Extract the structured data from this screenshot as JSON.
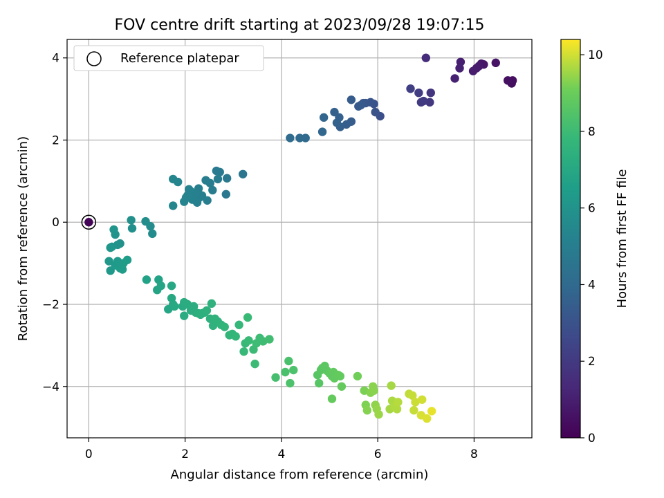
{
  "chart_data": {
    "type": "scatter",
    "title": "FOV centre drift starting at 2023/09/28 19:07:15",
    "xlabel": "Angular distance from reference (arcmin)",
    "ylabel": "Rotation from reference (arcmin)",
    "xlim": [
      -0.45,
      9.2
    ],
    "ylim": [
      -5.25,
      4.45
    ],
    "x_ticks": [
      0,
      2,
      4,
      6,
      8
    ],
    "y_ticks": [
      -4,
      -2,
      0,
      2,
      4
    ],
    "x_tick_labels": [
      "0",
      "2",
      "4",
      "6",
      "8"
    ],
    "y_tick_labels": [
      "−4",
      "−2",
      "0",
      "2",
      "4"
    ],
    "grid": true,
    "legend": {
      "position": "top-left",
      "entries": [
        "Reference platepar"
      ]
    },
    "reference_point": {
      "x": 0,
      "y": 0
    },
    "colorbar": {
      "label": "Hours from first FF file",
      "colormap": "viridis",
      "range": [
        0,
        10.4
      ],
      "ticks": [
        0,
        2,
        4,
        6,
        8,
        10
      ],
      "tick_labels": [
        "0",
        "2",
        "4",
        "6",
        "8",
        "10"
      ]
    },
    "series": [
      {
        "points": [
          [
            0.0,
            0.0,
            0.1
          ],
          [
            8.8,
            3.45,
            0.4
          ],
          [
            8.78,
            3.38,
            0.45
          ],
          [
            8.7,
            3.45,
            0.5
          ],
          [
            8.45,
            3.88,
            0.6
          ],
          [
            8.2,
            3.84,
            0.7
          ],
          [
            8.15,
            3.86,
            0.75
          ],
          [
            8.1,
            3.8,
            0.8
          ],
          [
            8.05,
            3.75,
            0.85
          ],
          [
            7.98,
            3.68,
            0.9
          ],
          [
            7.72,
            3.9,
            1.0
          ],
          [
            7.7,
            3.75,
            1.05
          ],
          [
            7.6,
            3.5,
            1.1
          ],
          [
            7.0,
            4.0,
            1.5
          ],
          [
            7.1,
            3.15,
            1.8
          ],
          [
            7.08,
            2.92,
            1.9
          ],
          [
            6.95,
            2.95,
            2.0
          ],
          [
            6.9,
            2.92,
            2.05
          ],
          [
            6.85,
            3.15,
            2.1
          ],
          [
            6.68,
            3.25,
            2.2
          ],
          [
            6.05,
            2.58,
            2.9
          ],
          [
            5.95,
            2.68,
            3.0
          ],
          [
            5.92,
            2.88,
            3.05
          ],
          [
            5.85,
            2.92,
            3.1
          ],
          [
            5.75,
            2.9,
            3.15
          ],
          [
            5.7,
            2.9,
            3.2
          ],
          [
            5.65,
            2.85,
            3.25
          ],
          [
            5.6,
            2.82,
            3.3
          ],
          [
            5.45,
            2.98,
            3.4
          ],
          [
            5.45,
            2.45,
            3.45
          ],
          [
            5.35,
            2.38,
            3.5
          ],
          [
            5.22,
            2.32,
            3.55
          ],
          [
            5.2,
            2.55,
            3.6
          ],
          [
            5.1,
            2.68,
            3.65
          ],
          [
            5.15,
            2.42,
            3.7
          ],
          [
            4.88,
            2.55,
            3.8
          ],
          [
            4.85,
            2.2,
            3.85
          ],
          [
            4.5,
            2.05,
            4.0
          ],
          [
            4.38,
            2.05,
            4.05
          ],
          [
            4.18,
            2.05,
            4.1
          ],
          [
            3.2,
            1.17,
            4.6
          ],
          [
            2.85,
            0.68,
            4.7
          ],
          [
            2.87,
            1.07,
            4.75
          ],
          [
            2.72,
            1.22,
            4.8
          ],
          [
            2.65,
            1.25,
            4.8
          ],
          [
            2.68,
            1.05,
            4.85
          ],
          [
            2.57,
            0.78,
            4.9
          ],
          [
            2.52,
            0.95,
            4.9
          ],
          [
            2.43,
            1.02,
            4.95
          ],
          [
            2.46,
            0.53,
            5.0
          ],
          [
            2.35,
            0.65,
            5.0
          ],
          [
            2.3,
            0.6,
            5.05
          ],
          [
            2.28,
            0.82,
            5.05
          ],
          [
            2.25,
            0.48,
            5.1
          ],
          [
            2.2,
            0.7,
            5.1
          ],
          [
            2.15,
            0.55,
            5.15
          ],
          [
            2.12,
            0.75,
            5.15
          ],
          [
            2.08,
            0.8,
            5.2
          ],
          [
            2.05,
            0.65,
            5.2
          ],
          [
            2.02,
            0.6,
            5.25
          ],
          [
            1.98,
            0.5,
            5.3
          ],
          [
            1.85,
            0.98,
            5.3
          ],
          [
            1.75,
            1.05,
            5.35
          ],
          [
            1.75,
            0.4,
            5.4
          ],
          [
            1.32,
            -0.28,
            5.6
          ],
          [
            1.28,
            -0.1,
            5.65
          ],
          [
            1.18,
            0.02,
            5.7
          ],
          [
            0.9,
            -0.15,
            5.8
          ],
          [
            0.88,
            0.05,
            5.85
          ],
          [
            0.65,
            -0.52,
            5.9
          ],
          [
            0.6,
            -0.55,
            5.95
          ],
          [
            0.55,
            -0.3,
            6.0
          ],
          [
            0.52,
            -0.18,
            6.05
          ],
          [
            0.48,
            -0.6,
            6.1
          ],
          [
            0.45,
            -0.62,
            6.15
          ],
          [
            0.42,
            -0.95,
            6.2
          ],
          [
            0.45,
            -1.18,
            6.25
          ],
          [
            0.55,
            -1.05,
            6.3
          ],
          [
            0.6,
            -0.95,
            6.3
          ],
          [
            0.65,
            -1.12,
            6.35
          ],
          [
            0.7,
            -1.15,
            6.4
          ],
          [
            0.72,
            -1.0,
            6.4
          ],
          [
            0.8,
            -0.92,
            6.45
          ],
          [
            1.2,
            -1.4,
            6.7
          ],
          [
            1.45,
            -1.4,
            6.75
          ],
          [
            1.42,
            -1.65,
            6.8
          ],
          [
            1.5,
            -1.55,
            6.85
          ],
          [
            1.65,
            -2.12,
            6.9
          ],
          [
            1.72,
            -1.55,
            6.95
          ],
          [
            1.72,
            -1.85,
            7.0
          ],
          [
            1.75,
            -2.0,
            7.0
          ],
          [
            1.78,
            -2.05,
            7.05
          ],
          [
            1.95,
            -2.05,
            7.1
          ],
          [
            1.98,
            -1.95,
            7.15
          ],
          [
            1.98,
            -2.28,
            7.15
          ],
          [
            2.05,
            -2.0,
            7.2
          ],
          [
            2.12,
            -2.15,
            7.25
          ],
          [
            2.18,
            -2.05,
            7.25
          ],
          [
            2.22,
            -2.2,
            7.3
          ],
          [
            2.28,
            -2.22,
            7.35
          ],
          [
            2.32,
            -2.25,
            7.35
          ],
          [
            2.35,
            -2.22,
            7.4
          ],
          [
            2.4,
            -2.2,
            7.4
          ],
          [
            2.45,
            -2.15,
            7.45
          ],
          [
            2.52,
            -2.35,
            7.45
          ],
          [
            2.55,
            -1.98,
            7.5
          ],
          [
            2.58,
            -2.52,
            7.5
          ],
          [
            2.62,
            -2.35,
            7.55
          ],
          [
            2.68,
            -2.42,
            7.55
          ],
          [
            2.75,
            -2.5,
            7.6
          ],
          [
            2.82,
            -2.55,
            7.65
          ],
          [
            2.92,
            -2.75,
            7.7
          ],
          [
            2.98,
            -2.72,
            7.7
          ],
          [
            3.05,
            -2.78,
            7.75
          ],
          [
            3.12,
            -2.5,
            7.8
          ],
          [
            3.22,
            -3.15,
            7.85
          ],
          [
            3.25,
            -2.95,
            7.85
          ],
          [
            3.3,
            -2.32,
            7.9
          ],
          [
            3.32,
            -2.88,
            7.9
          ],
          [
            3.42,
            -3.1,
            7.95
          ],
          [
            3.45,
            -3.45,
            7.95
          ],
          [
            3.48,
            -2.95,
            8.0
          ],
          [
            3.55,
            -2.82,
            8.0
          ],
          [
            3.62,
            -2.9,
            8.05
          ],
          [
            3.75,
            -2.85,
            8.1
          ],
          [
            3.88,
            -3.78,
            8.2
          ],
          [
            4.08,
            -3.65,
            8.3
          ],
          [
            4.15,
            -3.38,
            8.3
          ],
          [
            4.18,
            -3.92,
            8.35
          ],
          [
            4.25,
            -3.6,
            8.35
          ],
          [
            4.75,
            -3.72,
            8.6
          ],
          [
            4.78,
            -3.92,
            8.6
          ],
          [
            4.82,
            -3.6,
            8.65
          ],
          [
            4.85,
            -3.55,
            8.65
          ],
          [
            4.9,
            -3.5,
            8.7
          ],
          [
            4.95,
            -3.62,
            8.7
          ],
          [
            5.0,
            -3.68,
            8.75
          ],
          [
            5.05,
            -3.75,
            8.75
          ],
          [
            5.08,
            -3.65,
            8.8
          ],
          [
            5.1,
            -3.8,
            8.8
          ],
          [
            5.18,
            -3.72,
            8.85
          ],
          [
            5.22,
            -3.75,
            8.85
          ],
          [
            5.05,
            -4.3,
            8.9
          ],
          [
            5.25,
            -4.0,
            8.9
          ],
          [
            5.58,
            -3.75,
            9.1
          ],
          [
            5.72,
            -4.1,
            9.2
          ],
          [
            5.75,
            -4.45,
            9.25
          ],
          [
            5.78,
            -4.58,
            9.3
          ],
          [
            5.85,
            -4.15,
            9.3
          ],
          [
            5.9,
            -4.0,
            9.35
          ],
          [
            5.92,
            -4.1,
            9.35
          ],
          [
            5.95,
            -4.45,
            9.4
          ],
          [
            5.98,
            -4.55,
            9.45
          ],
          [
            6.02,
            -4.68,
            9.5
          ],
          [
            6.25,
            -4.55,
            9.6
          ],
          [
            6.28,
            -3.98,
            9.6
          ],
          [
            6.3,
            -4.35,
            9.65
          ],
          [
            6.35,
            -4.5,
            9.7
          ],
          [
            6.4,
            -4.55,
            9.7
          ],
          [
            6.42,
            -4.38,
            9.75
          ],
          [
            6.65,
            -4.18,
            9.85
          ],
          [
            6.72,
            -4.22,
            9.9
          ],
          [
            6.75,
            -4.58,
            9.9
          ],
          [
            6.78,
            -4.38,
            9.95
          ],
          [
            6.92,
            -4.32,
            10.0
          ],
          [
            6.9,
            -4.7,
            10.05
          ],
          [
            7.02,
            -4.78,
            10.1
          ],
          [
            7.12,
            -4.6,
            10.2
          ]
        ]
      }
    ]
  }
}
